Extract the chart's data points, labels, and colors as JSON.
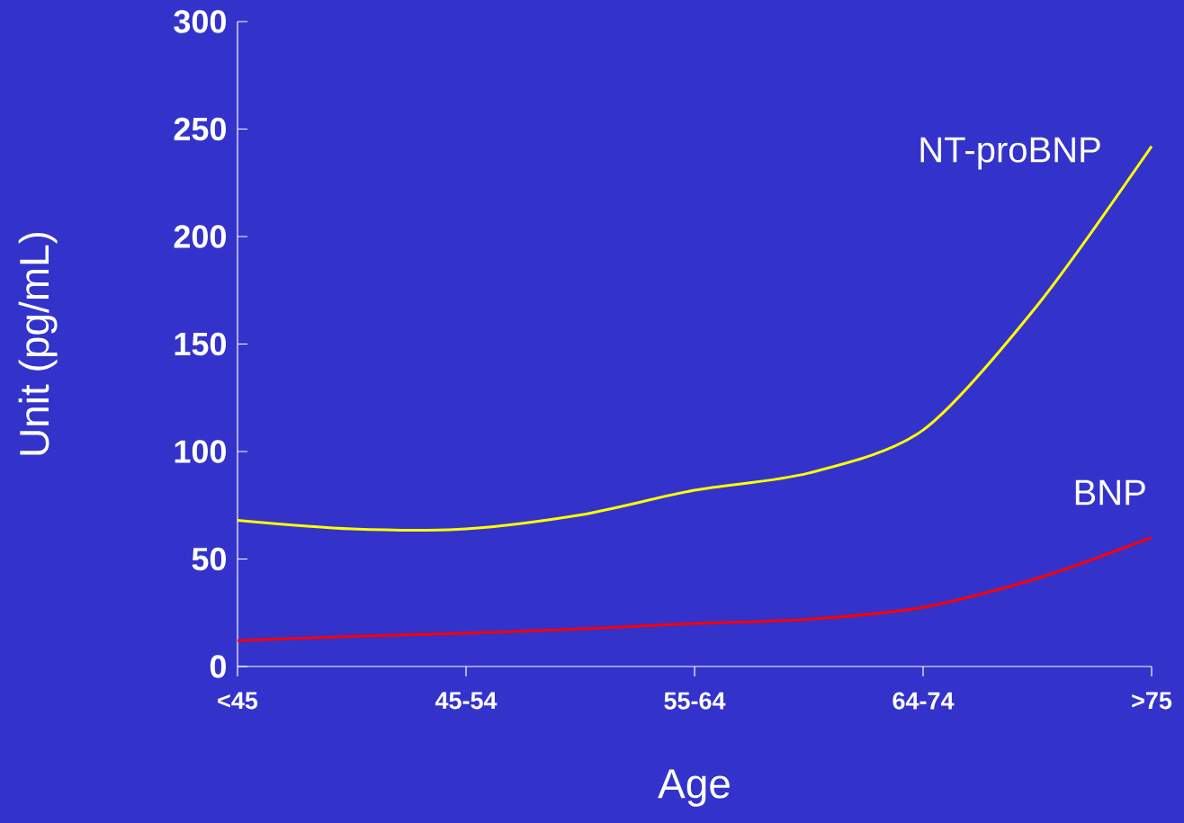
{
  "chart_data": {
    "type": "line",
    "xlabel": "Age",
    "ylabel": "Unit (pg/mL)",
    "ylim": [
      0,
      300
    ],
    "categories": [
      "<45",
      null,
      "45-54",
      null,
      "55-64",
      null,
      "64-74",
      null,
      ">75"
    ],
    "yticks": [
      0,
      50,
      100,
      150,
      200,
      250,
      300
    ],
    "marker": "none",
    "line_style": "solid",
    "legend": false,
    "series": [
      {
        "name": "NT-proBNP",
        "color": "#ffff00",
        "values": [
          68,
          64,
          64,
          70.5,
          82,
          90,
          110,
          168,
          242
        ]
      },
      {
        "name": "BNP",
        "color": "#ff0000",
        "values": [
          12,
          14,
          15.5,
          17.5,
          20,
          22,
          27.5,
          41,
          60
        ]
      }
    ]
  }
}
